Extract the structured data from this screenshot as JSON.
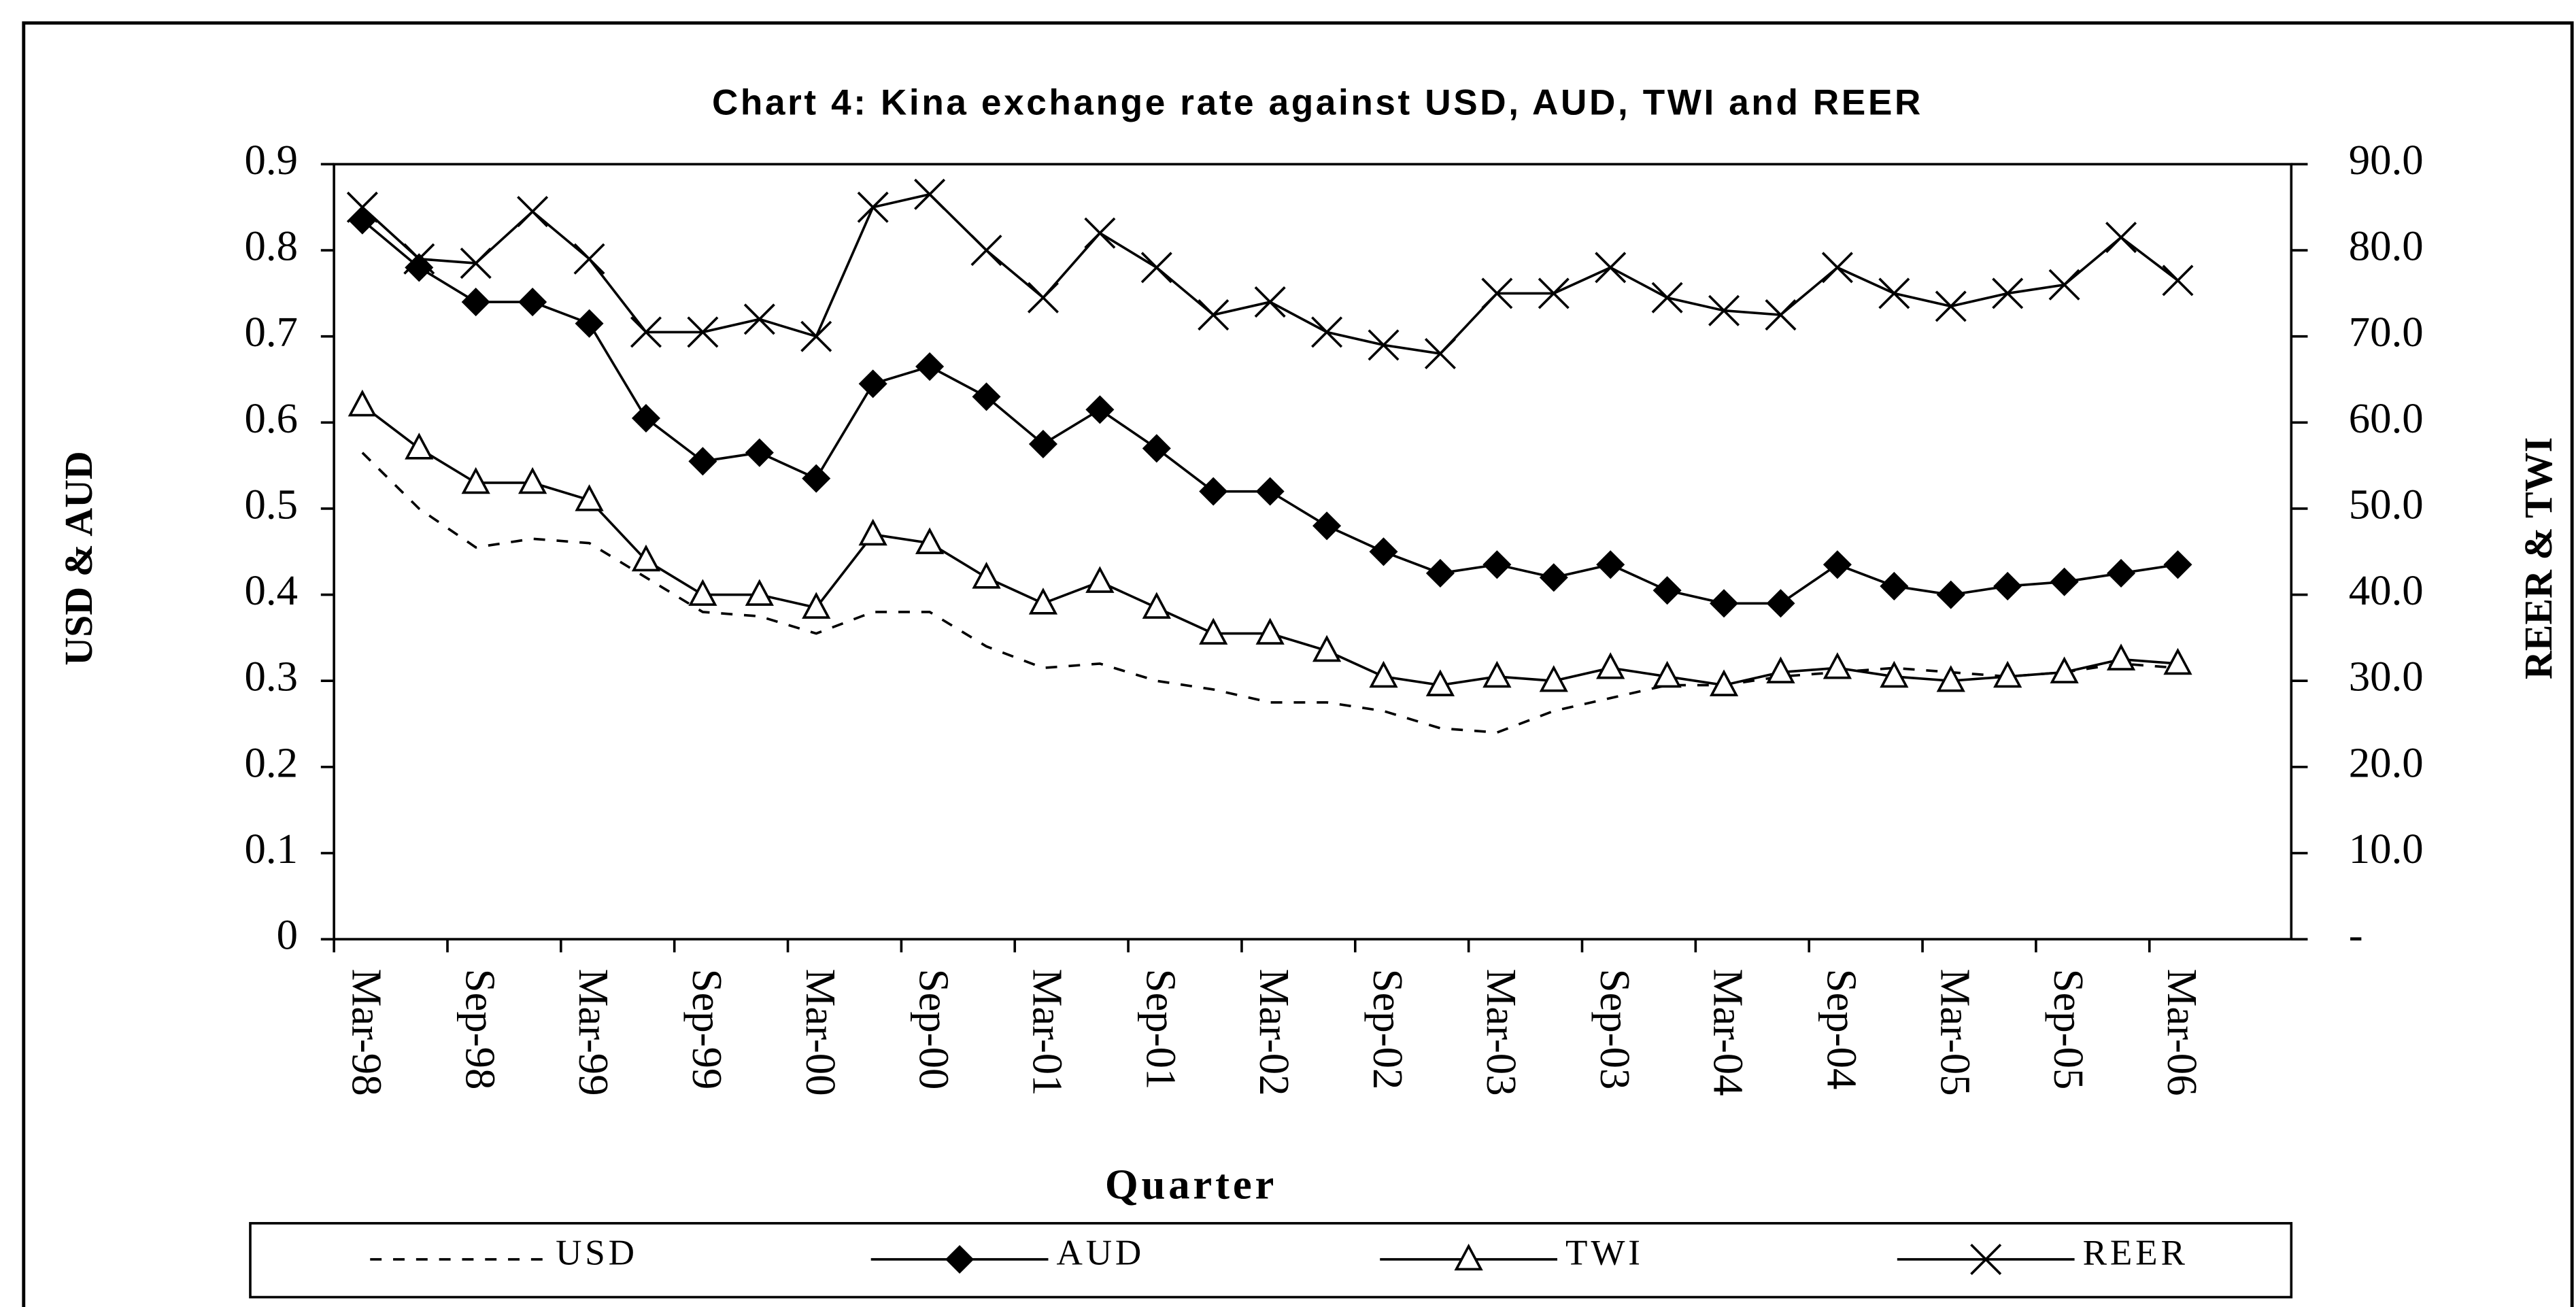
{
  "chart_data": {
    "type": "line",
    "title": "Chart 4: Kina exchange rate against USD, AUD, TWI and REER",
    "x_label": "Quarter",
    "y_label": "USD & AUD",
    "y2_label": "REER & TWI",
    "categories": [
      "Mar-98",
      null,
      "Sep-98",
      null,
      "Mar-99",
      null,
      "Sep-99",
      null,
      "Mar-00",
      null,
      "Sep-00",
      null,
      "Mar-01",
      null,
      "Sep-01",
      null,
      "Mar-02",
      null,
      "Sep-02",
      null,
      "Mar-03",
      null,
      "Sep-03",
      null,
      "Mar-04",
      null,
      "Sep-04",
      null,
      "Mar-05",
      null,
      "Sep-05",
      null,
      "Mar-06"
    ],
    "ylim": [
      0,
      0.9
    ],
    "yticks": [
      0,
      0.1,
      0.2,
      0.3,
      0.4,
      0.5,
      0.6,
      0.7,
      0.8,
      0.9
    ],
    "y2lim": [
      0,
      90
    ],
    "y2ticks": [
      {
        "value": 0,
        "label": "-"
      },
      {
        "value": 10,
        "label": "10.0"
      },
      {
        "value": 20,
        "label": "20.0"
      },
      {
        "value": 30,
        "label": "30.0"
      },
      {
        "value": 40,
        "label": "40.0"
      },
      {
        "value": 50,
        "label": "50.0"
      },
      {
        "value": 60,
        "label": "60.0"
      },
      {
        "value": 70,
        "label": "70.0"
      },
      {
        "value": 80,
        "label": "80.0"
      },
      {
        "value": 90,
        "label": "90.0"
      }
    ],
    "grid": false,
    "legend": "bottom",
    "series": [
      {
        "name": "USD",
        "color": "#000000",
        "dash": "dashed",
        "marker": "none",
        "values": [
          0.565,
          0.5,
          0.455,
          0.465,
          0.46,
          0.42,
          0.38,
          0.375,
          0.355,
          0.38,
          0.38,
          0.34,
          0.315,
          0.32,
          0.3,
          0.29,
          0.275,
          0.275,
          0.265,
          0.245,
          0.24,
          0.265,
          0.28,
          0.295,
          0.295,
          0.305,
          0.31,
          0.315,
          0.31,
          0.305,
          0.31,
          0.32,
          0.315
        ]
      },
      {
        "name": "AUD",
        "color": "#000000",
        "marker": "diamond",
        "values": [
          0.835,
          0.78,
          0.74,
          0.74,
          0.715,
          0.605,
          0.555,
          0.565,
          0.535,
          0.645,
          0.665,
          0.63,
          0.575,
          0.615,
          0.57,
          0.52,
          0.52,
          0.48,
          0.45,
          0.425,
          0.435,
          0.42,
          0.435,
          0.405,
          0.39,
          0.39,
          0.435,
          0.41,
          0.4,
          0.41,
          0.415,
          0.425,
          0.435
        ]
      },
      {
        "name": "TWI",
        "color": "#000000",
        "marker": "triangle",
        "axis": "y2",
        "values": [
          62,
          57,
          53,
          53,
          51,
          44,
          40,
          40,
          38.5,
          47,
          46,
          42,
          39,
          41.5,
          38.5,
          35.5,
          35.5,
          33.5,
          30.5,
          29.5,
          30.5,
          30,
          31.5,
          30.5,
          29.5,
          31,
          31.5,
          30.5,
          30,
          30.5,
          31,
          32.5,
          32
        ]
      },
      {
        "name": "REER",
        "color": "#000000",
        "marker": "x",
        "axis": "y2",
        "values": [
          85,
          79,
          78.5,
          84.5,
          79,
          70.5,
          70.5,
          72,
          70,
          85,
          86.5,
          80,
          74.5,
          82,
          78,
          72.5,
          74,
          70.5,
          69,
          68,
          75,
          75,
          78,
          74.5,
          73,
          72.5,
          78,
          75,
          73.5,
          75,
          76,
          81.5,
          76.5
        ]
      }
    ]
  }
}
